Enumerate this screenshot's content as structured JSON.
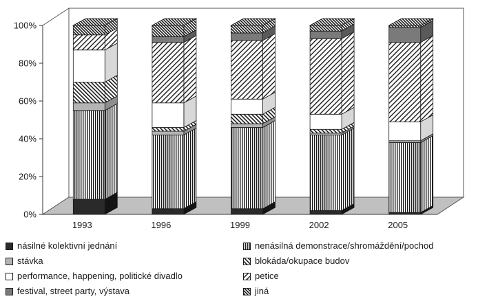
{
  "chart_data": {
    "type": "bar",
    "stacked": true,
    "three_d": true,
    "categories": [
      "1993",
      "1996",
      "1999",
      "2002",
      "2005"
    ],
    "ylim": [
      0,
      100
    ],
    "yticks": [
      "0%",
      "20%",
      "40%",
      "60%",
      "80%",
      "100%"
    ],
    "grid": false,
    "legend_position": "bottom",
    "series": [
      {
        "name": "násilné kolektivní jednání",
        "values": [
          8,
          3,
          3,
          2,
          1
        ],
        "pattern": "solid-dark"
      },
      {
        "name": "nenásilná demonstrace/shromáždění/pochod",
        "values": [
          47,
          39,
          43,
          40,
          37
        ],
        "pattern": "vertical"
      },
      {
        "name": "stávka",
        "values": [
          4,
          2,
          2,
          1,
          1
        ],
        "pattern": "solid-light"
      },
      {
        "name": "blokáda/okupace budov",
        "values": [
          11,
          2,
          5,
          2,
          0
        ],
        "pattern": "cross"
      },
      {
        "name": "performance, happening, politické divadlo",
        "values": [
          17,
          13,
          8,
          8,
          10
        ],
        "pattern": "white"
      },
      {
        "name": "petice",
        "values": [
          8,
          32,
          31,
          40,
          42
        ],
        "pattern": "diagonal"
      },
      {
        "name": "festival, street party, výstava",
        "values": [
          0,
          3,
          4,
          4,
          8
        ],
        "pattern": "solid-mid"
      },
      {
        "name": "jiná",
        "values": [
          5,
          6,
          4,
          3,
          1
        ],
        "pattern": "dense-diagonal"
      }
    ]
  },
  "colors": {
    "dark": "#2a2a2a",
    "mid": "#7a7a7a",
    "light": "#b4b4b4",
    "floor": "#c0c0c0",
    "outline": "#1a1a1a"
  }
}
